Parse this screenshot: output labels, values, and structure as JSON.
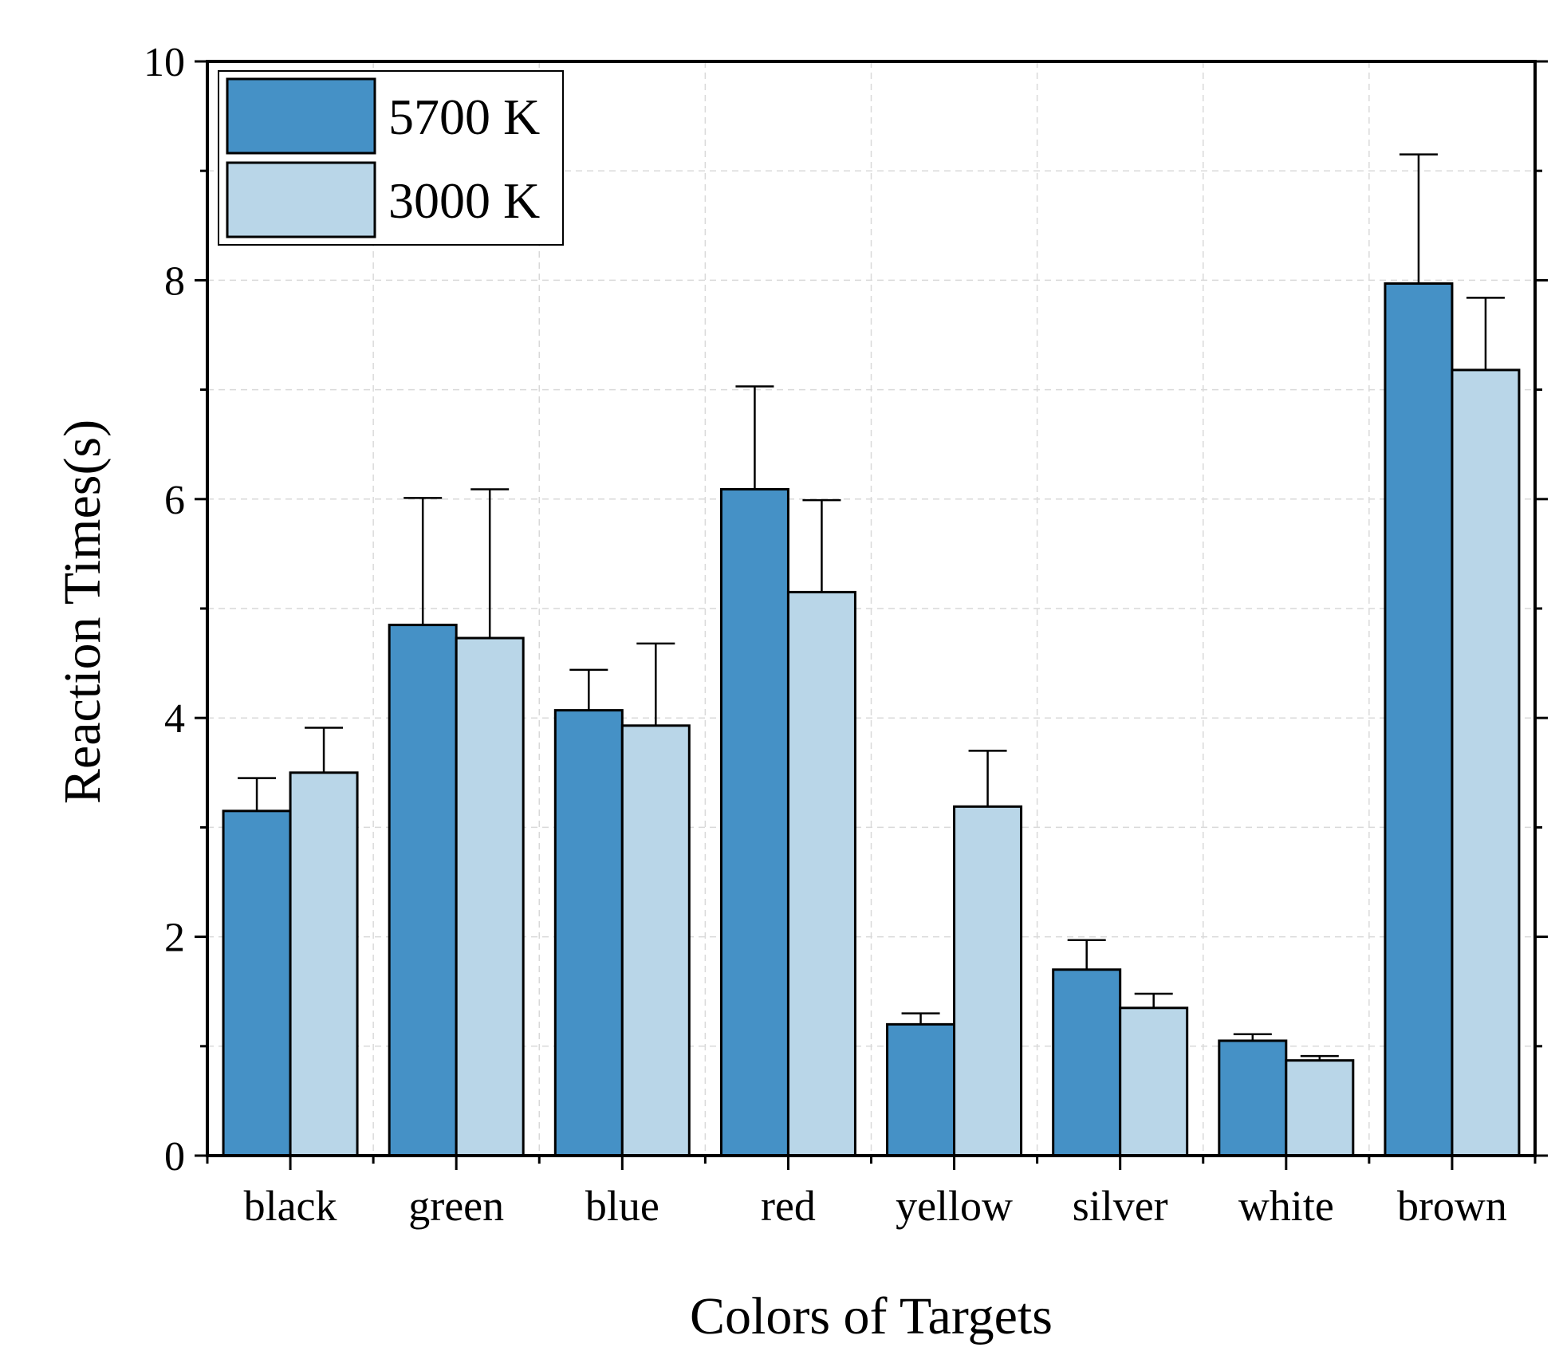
{
  "chart_data": {
    "type": "bar",
    "xlabel": "Colors of Targets",
    "ylabel": "Reaction Times(s)",
    "ylim": [
      0,
      10
    ],
    "yticks": [
      "0",
      "2",
      "4",
      "6",
      "8",
      "10"
    ],
    "grid": true,
    "legend_position": "top-left",
    "categories": [
      "black",
      "green",
      "blue",
      "red",
      "yellow",
      "silver",
      "white",
      "brown"
    ],
    "series": [
      {
        "name": "5700 K",
        "color": "#4591c6",
        "values": [
          3.15,
          4.85,
          4.07,
          6.09,
          1.2,
          1.7,
          1.05,
          7.97
        ],
        "error": [
          0.3,
          1.16,
          0.37,
          0.94,
          0.1,
          0.27,
          0.06,
          1.18
        ]
      },
      {
        "name": "3000 K",
        "color": "#b9d6e8",
        "values": [
          3.5,
          4.73,
          3.93,
          5.15,
          3.19,
          1.35,
          0.87,
          7.18
        ],
        "error": [
          0.41,
          1.36,
          0.75,
          0.84,
          0.51,
          0.13,
          0.04,
          0.66
        ]
      }
    ]
  }
}
